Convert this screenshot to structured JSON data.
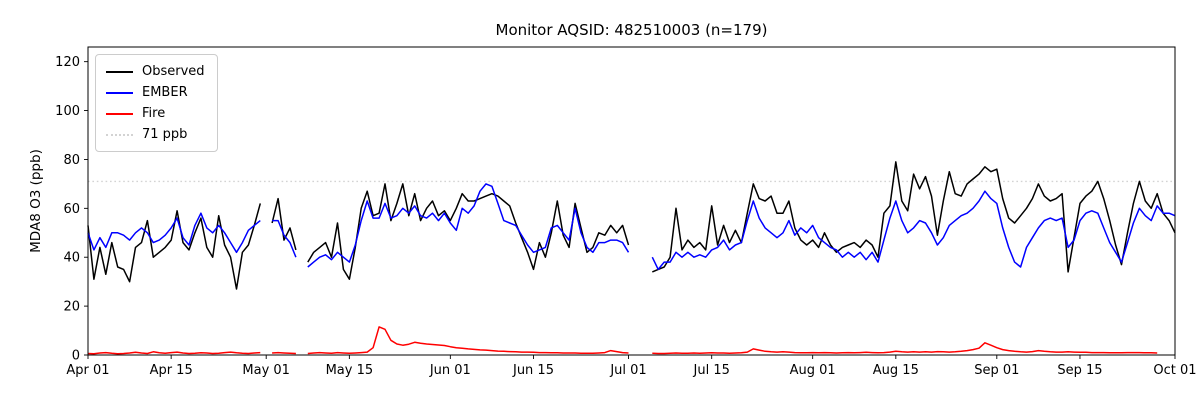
{
  "chart_data": {
    "type": "line",
    "title": "Monitor AQSID: 482510003 (n=179)",
    "monitor_aqsid": "482510003",
    "n": 179,
    "xlabel": "",
    "ylabel": "MDA8 O3 (ppb)",
    "ylim": [
      0,
      126
    ],
    "yticks": [
      0,
      20,
      40,
      60,
      80,
      100,
      120
    ],
    "grid": false,
    "legend_position": "upper left",
    "x_unit": "day index from Apr 01",
    "xticks": [
      {
        "day": 0,
        "label": "Apr 01"
      },
      {
        "day": 14,
        "label": "Apr 15"
      },
      {
        "day": 30,
        "label": "May 01"
      },
      {
        "day": 44,
        "label": "May 15"
      },
      {
        "day": 61,
        "label": "Jun 01"
      },
      {
        "day": 75,
        "label": "Jun 15"
      },
      {
        "day": 91,
        "label": "Jul 01"
      },
      {
        "day": 105,
        "label": "Jul 15"
      },
      {
        "day": 122,
        "label": "Aug 01"
      },
      {
        "day": 136,
        "label": "Aug 15"
      },
      {
        "day": 153,
        "label": "Sep 01"
      },
      {
        "day": 167,
        "label": "Sep 15"
      },
      {
        "day": 183,
        "label": "Oct 01"
      }
    ],
    "threshold": {
      "value": 71,
      "label": "71 ppb",
      "color": "#d3d3d3",
      "style": "dotted"
    },
    "series": [
      {
        "name": "Observed",
        "color": "#000000",
        "values": [
          53,
          31,
          44,
          33,
          46,
          36,
          35,
          30,
          44,
          46,
          55,
          40,
          42,
          44,
          47,
          59,
          46,
          43,
          50,
          56,
          44,
          40,
          57,
          45,
          40,
          27,
          42,
          45,
          53,
          62,
          null,
          54,
          64,
          47,
          52,
          43,
          null,
          38,
          42,
          44,
          46,
          40,
          54,
          35,
          31,
          44,
          60,
          67,
          57,
          58,
          70,
          55,
          62,
          70,
          57,
          66,
          55,
          60,
          63,
          57,
          59,
          55,
          60,
          66,
          63,
          63,
          64,
          65,
          66,
          65,
          63,
          61,
          54,
          48,
          42,
          35,
          46,
          40,
          50,
          63,
          49,
          44,
          62,
          52,
          42,
          44,
          50,
          49,
          53,
          50,
          53,
          45,
          null,
          null,
          null,
          34,
          35,
          36,
          40,
          60,
          43,
          47,
          44,
          46,
          43,
          61,
          45,
          53,
          46,
          51,
          46,
          58,
          70,
          64,
          63,
          65,
          58,
          58,
          63,
          52,
          47,
          45,
          47,
          44,
          50,
          45,
          42,
          44,
          45,
          46,
          44,
          47,
          45,
          40,
          58,
          61,
          79,
          63,
          59,
          74,
          68,
          73,
          65,
          49,
          63,
          75,
          66,
          65,
          70,
          72,
          74,
          77,
          75,
          76,
          64,
          56,
          54,
          57,
          60,
          64,
          70,
          65,
          63,
          64,
          66,
          34,
          48,
          62,
          65,
          67,
          71,
          64,
          55,
          45,
          37,
          50,
          62,
          71,
          63,
          60,
          66,
          58,
          55,
          50
        ]
      },
      {
        "name": "EMBER",
        "color": "#0000ff",
        "values": [
          50,
          43,
          48,
          44,
          50,
          50,
          49,
          47,
          50,
          52,
          50,
          46,
          47,
          49,
          52,
          56,
          48,
          45,
          53,
          58,
          52,
          50,
          53,
          50,
          46,
          42,
          46,
          51,
          53,
          55,
          null,
          55,
          55,
          49,
          46,
          40,
          null,
          36,
          38,
          40,
          41,
          39,
          42,
          40,
          38,
          45,
          55,
          63,
          56,
          56,
          62,
          56,
          57,
          60,
          58,
          61,
          57,
          56,
          58,
          55,
          58,
          54,
          51,
          60,
          58,
          61,
          67,
          70,
          69,
          62,
          55,
          54,
          53,
          49,
          45,
          42,
          43,
          44,
          52,
          53,
          50,
          47,
          60,
          50,
          44,
          42,
          46,
          46,
          47,
          47,
          46,
          42,
          null,
          null,
          null,
          40,
          35,
          38,
          38,
          42,
          40,
          42,
          40,
          41,
          40,
          43,
          44,
          47,
          43,
          45,
          46,
          55,
          63,
          56,
          52,
          50,
          48,
          50,
          55,
          49,
          52,
          50,
          53,
          48,
          46,
          44,
          43,
          40,
          42,
          40,
          42,
          39,
          42,
          38,
          47,
          56,
          63,
          55,
          50,
          52,
          55,
          54,
          50,
          45,
          48,
          53,
          55,
          57,
          58,
          60,
          63,
          67,
          64,
          62,
          52,
          44,
          38,
          36,
          44,
          48,
          52,
          55,
          56,
          55,
          56,
          44,
          47,
          55,
          58,
          59,
          58,
          52,
          46,
          42,
          38,
          46,
          54,
          60,
          57,
          55,
          61,
          58,
          58,
          57
        ]
      },
      {
        "name": "Fire",
        "color": "#ff0000",
        "values": [
          0.6,
          0.5,
          0.8,
          1.0,
          0.7,
          0.5,
          0.6,
          0.8,
          1.1,
          0.8,
          0.6,
          1.3,
          0.9,
          0.7,
          1.0,
          1.2,
          0.8,
          0.6,
          0.7,
          0.9,
          0.8,
          0.6,
          0.7,
          1.0,
          1.2,
          0.9,
          0.7,
          0.6,
          0.8,
          1.0,
          null,
          0.8,
          1.0,
          0.8,
          0.7,
          0.6,
          null,
          0.6,
          0.8,
          1.0,
          0.8,
          0.7,
          1.0,
          0.8,
          0.7,
          0.8,
          1.0,
          1.2,
          3.0,
          11.5,
          10.5,
          6.0,
          4.5,
          4.0,
          4.4,
          5.2,
          4.8,
          4.5,
          4.3,
          4.1,
          3.9,
          3.4,
          3.0,
          2.8,
          2.5,
          2.3,
          2.1,
          2.0,
          1.8,
          1.6,
          1.5,
          1.4,
          1.3,
          1.2,
          1.2,
          1.1,
          1.0,
          1.0,
          0.9,
          0.9,
          0.8,
          0.8,
          0.8,
          0.7,
          0.7,
          0.7,
          0.8,
          1.0,
          1.8,
          1.4,
          1.0,
          0.8,
          null,
          null,
          null,
          0.7,
          0.6,
          0.6,
          0.7,
          0.8,
          0.7,
          0.7,
          0.8,
          0.7,
          0.8,
          0.9,
          0.8,
          0.8,
          0.7,
          0.8,
          0.9,
          1.2,
          2.5,
          2.0,
          1.5,
          1.3,
          1.2,
          1.3,
          1.2,
          1.0,
          0.9,
          0.9,
          1.0,
          0.9,
          1.0,
          0.9,
          0.8,
          0.9,
          1.0,
          0.9,
          1.0,
          1.1,
          1.0,
          0.9,
          1.0,
          1.2,
          1.5,
          1.3,
          1.2,
          1.3,
          1.2,
          1.3,
          1.2,
          1.4,
          1.3,
          1.2,
          1.3,
          1.5,
          1.8,
          2.2,
          2.8,
          5.0,
          4.0,
          3.0,
          2.2,
          1.8,
          1.5,
          1.3,
          1.2,
          1.4,
          1.8,
          1.5,
          1.3,
          1.2,
          1.2,
          1.3,
          1.2,
          1.1,
          1.1,
          1.0,
          1.0,
          1.0,
          0.9,
          0.9,
          0.9,
          1.0,
          1.0,
          1.0,
          0.9,
          0.9,
          0.8,
          null,
          null,
          null
        ]
      }
    ]
  }
}
